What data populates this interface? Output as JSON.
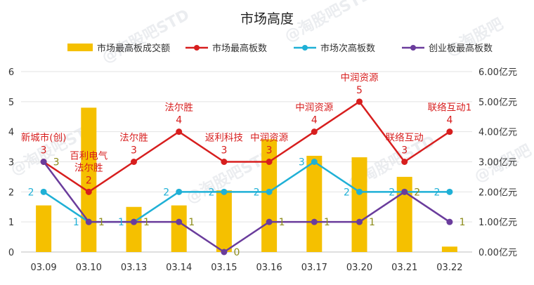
{
  "chart_data": {
    "type": "bar+line",
    "title": "市场高度",
    "categories": [
      "03.09",
      "03.10",
      "03.13",
      "03.14",
      "03.15",
      "03.16",
      "03.17",
      "03.20",
      "03.21",
      "03.22"
    ],
    "left_axis": {
      "ylim": [
        0,
        6
      ],
      "ticks": [
        "0",
        "1",
        "2",
        "3",
        "4",
        "5",
        "6"
      ]
    },
    "right_axis": {
      "ylim": [
        0,
        6
      ],
      "ticks": [
        "0.00亿元",
        "1.00亿元",
        "2.00亿元",
        "3.00亿元",
        "4.00亿元",
        "5.00亿元",
        "6.00亿元"
      ]
    },
    "grid": "horizontal",
    "legend_position": "top",
    "bar_series": {
      "name": "市场最高板成交额",
      "color": "#f5c000",
      "values": [
        1.55,
        4.8,
        1.5,
        1.55,
        2.05,
        3.75,
        3.2,
        3.15,
        2.5,
        0.18
      ]
    },
    "line_series": [
      {
        "name": "市场最高板数",
        "color": "#d71e1e",
        "values": [
          3,
          2,
          3,
          4,
          3,
          3,
          4,
          5,
          3,
          4
        ],
        "value_labels": [
          "3",
          "2",
          "3",
          "4",
          "3",
          "3",
          "4",
          "5",
          "3",
          "4"
        ],
        "stock_labels": [
          [
            "新城市(创)"
          ],
          [
            "百利电气",
            "法尔胜"
          ],
          [
            "法尔胜"
          ],
          [
            "法尔胜"
          ],
          [
            "返利科技"
          ],
          [
            "中润资源"
          ],
          [
            "中润资源"
          ],
          [
            "中润资源"
          ],
          [
            "联络互动"
          ],
          [
            "联络互动1"
          ]
        ]
      },
      {
        "name": "市场次高板数",
        "color": "#1fb0d6",
        "values": [
          2,
          1,
          1,
          2,
          2,
          2,
          3,
          2,
          2,
          2
        ],
        "value_labels": [
          "2",
          "1",
          "1",
          "2",
          "2",
          "2",
          "3",
          "2",
          "2",
          "2"
        ]
      },
      {
        "name": "创业板最高板数",
        "color": "#6a3c9c",
        "values": [
          3,
          1,
          1,
          1,
          0,
          1,
          1,
          1,
          2,
          1
        ],
        "value_labels": [
          "3",
          "1",
          "1",
          "1",
          "0",
          "1",
          "1",
          "1",
          "2",
          "1"
        ]
      }
    ],
    "value_label_colors": {
      "red": "#d71e1e",
      "blue": "#1fb0d6",
      "olive": "#8c8c1a"
    }
  }
}
